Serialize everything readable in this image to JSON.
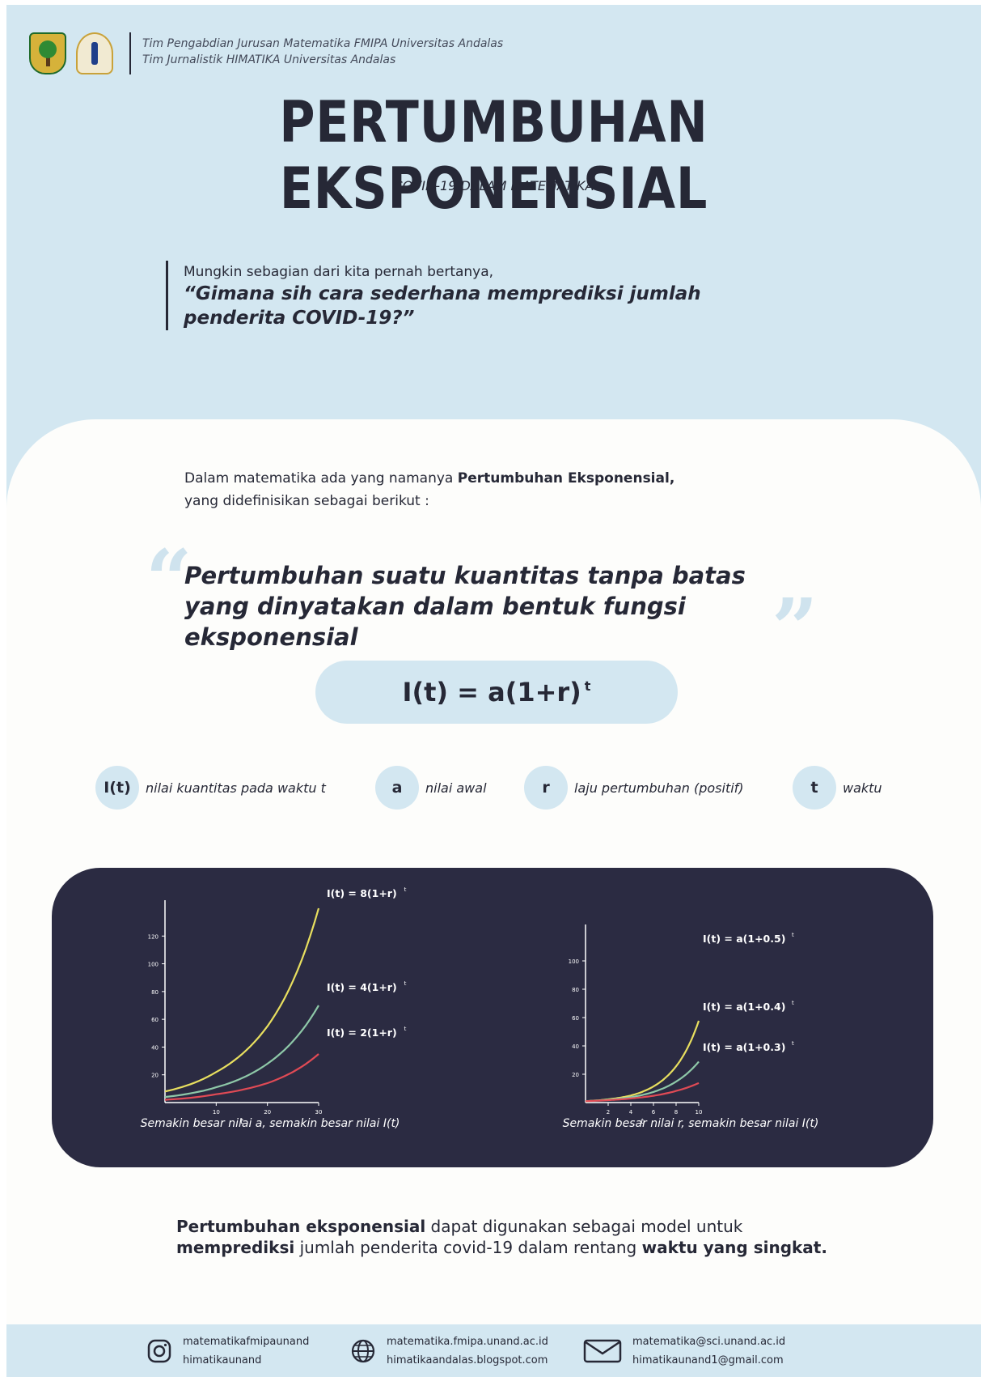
{
  "header": {
    "line1": "Tim Pengabdian Jurusan Matematika FMIPA Universitas Andalas",
    "line2": "Tim Jurnalistik HIMATIKA Universitas Andalas",
    "title": "PERTUMBUHAN EKSPONENSIAL",
    "subtitle": "COVID-19 DALAM MATEMATIKA"
  },
  "question": {
    "intro": "Mungkin sebagian dari kita pernah bertanya,",
    "quote": "“Gimana sih cara  sederhana memprediksi jumlah penderita COVID-19?”"
  },
  "intro": {
    "part1": "Dalam matematika ada yang namanya ",
    "bold": "Pertumbuhan Eksponensial,",
    "line2": "yang didefinisikan sebagai berikut :"
  },
  "definition": {
    "open_mark": "“",
    "text": "Pertumbuhan suatu kuantitas tanpa batas yang dinyatakan dalam bentuk fungsi eksponensial",
    "close_mark": "”"
  },
  "formula": {
    "base": "I(t) = a(1+r)",
    "exponent": "t"
  },
  "legend": [
    {
      "symbol": "I(t)",
      "label": "nilai kuantitas pada waktu t"
    },
    {
      "symbol": "a",
      "label": "nilai awal"
    },
    {
      "symbol": "r",
      "label": "laju pertumbuhan (positif)"
    },
    {
      "symbol": "t",
      "label": "waktu"
    }
  ],
  "chart_data": [
    {
      "type": "line",
      "x": [
        0,
        10,
        20,
        30
      ],
      "xlabel": "t",
      "xticks": [
        "10",
        "20",
        "30"
      ],
      "yticks": [
        "20",
        "40",
        "60",
        "80",
        "100",
        "120"
      ],
      "xlim": [
        0,
        30
      ],
      "ylim": [
        0,
        140
      ],
      "grid": false,
      "series": [
        {
          "name": "I(t) = 8(1+r)",
          "exponent": "t",
          "color": "#e8df5f",
          "values": [
            8,
            22,
            55,
            140
          ]
        },
        {
          "name": "I(t) = 4(1+r)",
          "exponent": "t",
          "color": "#8ec8a8",
          "values": [
            4,
            11,
            28,
            70
          ]
        },
        {
          "name": "I(t) = 2(1+r)",
          "exponent": "t",
          "color": "#e04a55",
          "values": [
            2,
            6,
            14,
            35
          ]
        }
      ],
      "caption": "Semakin besar nilai a, semakin besar nilai I(t)"
    },
    {
      "type": "line",
      "x": [
        0,
        2,
        4,
        6,
        8,
        10
      ],
      "xlabel": "t",
      "xticks": [
        "2",
        "4",
        "6",
        "8",
        "10"
      ],
      "yticks": [
        "20",
        "40",
        "60",
        "80",
        "100"
      ],
      "xlim": [
        0,
        10
      ],
      "ylim": [
        0,
        120
      ],
      "grid": false,
      "series": [
        {
          "name": "I(t) = a(1+0.5)",
          "exponent": "t",
          "color": "#e8df5f",
          "values": [
            1,
            2.3,
            5,
            11.4,
            25.6,
            57.7
          ]
        },
        {
          "name": "I(t) = a(1+0.4)",
          "exponent": "t",
          "color": "#8ec8a8",
          "values": [
            1,
            2,
            3.8,
            7.5,
            14.8,
            28.9
          ]
        },
        {
          "name": "I(t) = a(1+0.3)",
          "exponent": "t",
          "color": "#e04a55",
          "values": [
            1,
            1.7,
            2.9,
            4.8,
            8.2,
            13.8
          ]
        }
      ],
      "caption": "Semakin besar nilai r, semakin besar nilai I(t)"
    }
  ],
  "conclusion": {
    "b1": "Pertumbuhan eksponensial",
    "t1": " dapat digunakan sebagai model untuk",
    "b2": "memprediksi",
    "t2": " jumlah penderita covid-19 dalam rentang ",
    "b3": "waktu yang singkat."
  },
  "footer": [
    {
      "icon": "instagram-icon",
      "line1": "matematikafmipaunand",
      "line2": "himatikaunand"
    },
    {
      "icon": "globe-icon",
      "line1": "matematika.fmipa.unand.ac.id",
      "line2": "himatikaandalas.blogspot.com"
    },
    {
      "icon": "mail-icon",
      "line1": "matematika@sci.unand.ac.id",
      "line2": "himatikaunand1@gmail.com"
    }
  ],
  "colors": {
    "light_blue": "#d3e7f1",
    "navy": "#2b2b42",
    "ink": "#262836"
  }
}
